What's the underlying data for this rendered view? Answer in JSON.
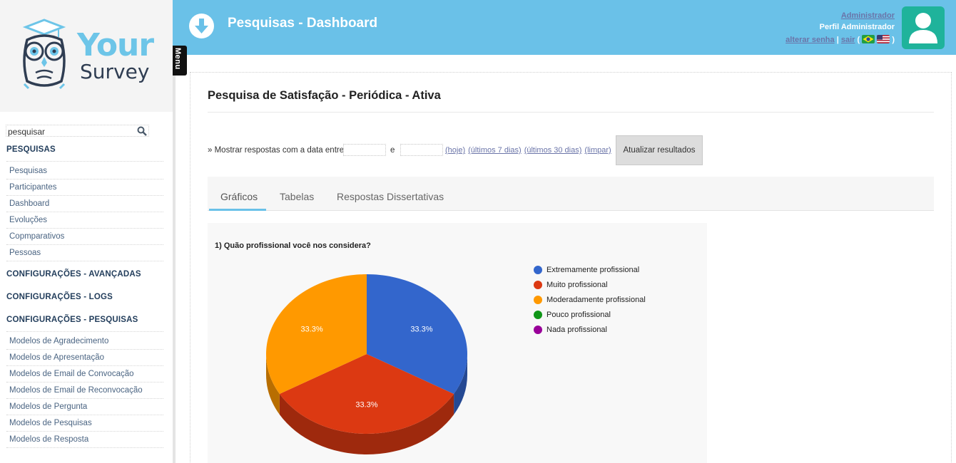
{
  "logo": {
    "word1": "Your",
    "word2": "Survey"
  },
  "search": {
    "placeholder": "pesquisar"
  },
  "sidebar": {
    "sections": [
      {
        "title": "PESQUISAS",
        "items": [
          "Pesquisas",
          "Participantes",
          "Dashboard",
          "Evoluções",
          "Copmparativos",
          "Pessoas"
        ]
      },
      {
        "title": "CONFIGURAÇÕES - AVANÇADAS",
        "items": []
      },
      {
        "title": "CONFIGURAÇÕES - LOGS",
        "items": []
      },
      {
        "title": "CONFIGURAÇÕES - PESQUISAS",
        "items": [
          "Modelos de Agradecimento",
          "Modelos de Apresentação",
          "Modelos de Email de Convocação",
          "Modelos de Email de Reconvocação",
          "Modelos de Pergunta",
          "Modelos de Pesquisas",
          "Modelos de Resposta"
        ]
      }
    ]
  },
  "menu_tab": "Menu",
  "header": {
    "title": "Pesquisas - Dashboard",
    "user_name": "Administrador",
    "user_role": "Perfil Administrador",
    "change_password": "alterar senha",
    "separator": "|",
    "logout": "sair",
    "paren_open": "(",
    "paren_close": ")"
  },
  "main": {
    "survey_title": "Pesquisa de Satisfação - Periódica - Ativa",
    "filter": {
      "label": "» Mostrar respostas com a data entre",
      "and": "e",
      "start_date": "",
      "end_date": "",
      "links": [
        "(hoje)",
        "(últimos 7 dias)",
        "(últimos 30 dias)",
        "(limpar)"
      ],
      "update_button": "Atualizar resultados"
    },
    "tabs": [
      "Gráficos",
      "Tabelas",
      "Respostas Dissertativas"
    ],
    "active_tab": 0
  },
  "colors": {
    "header": "#6ac1e8",
    "brand_dark": "#2f3d52",
    "avatar": "#1fb39b",
    "link": "#6a74a8"
  },
  "chart_data": {
    "type": "pie",
    "title": "1) Quão profissional você nos considera?",
    "legend_position": "right",
    "series": [
      {
        "name": "Extremamente profissional",
        "value": 33.3,
        "color": "#3366cc"
      },
      {
        "name": "Muito profissional",
        "value": 33.3,
        "color": "#dc3912"
      },
      {
        "name": "Moderadamente profissional",
        "value": 33.3,
        "color": "#ff9900"
      },
      {
        "name": "Pouco profissional",
        "value": 0,
        "color": "#109618"
      },
      {
        "name": "Nada profissional",
        "value": 0,
        "color": "#990099"
      }
    ],
    "slice_labels": [
      "33.3%",
      "33.3%",
      "33.3%"
    ]
  }
}
